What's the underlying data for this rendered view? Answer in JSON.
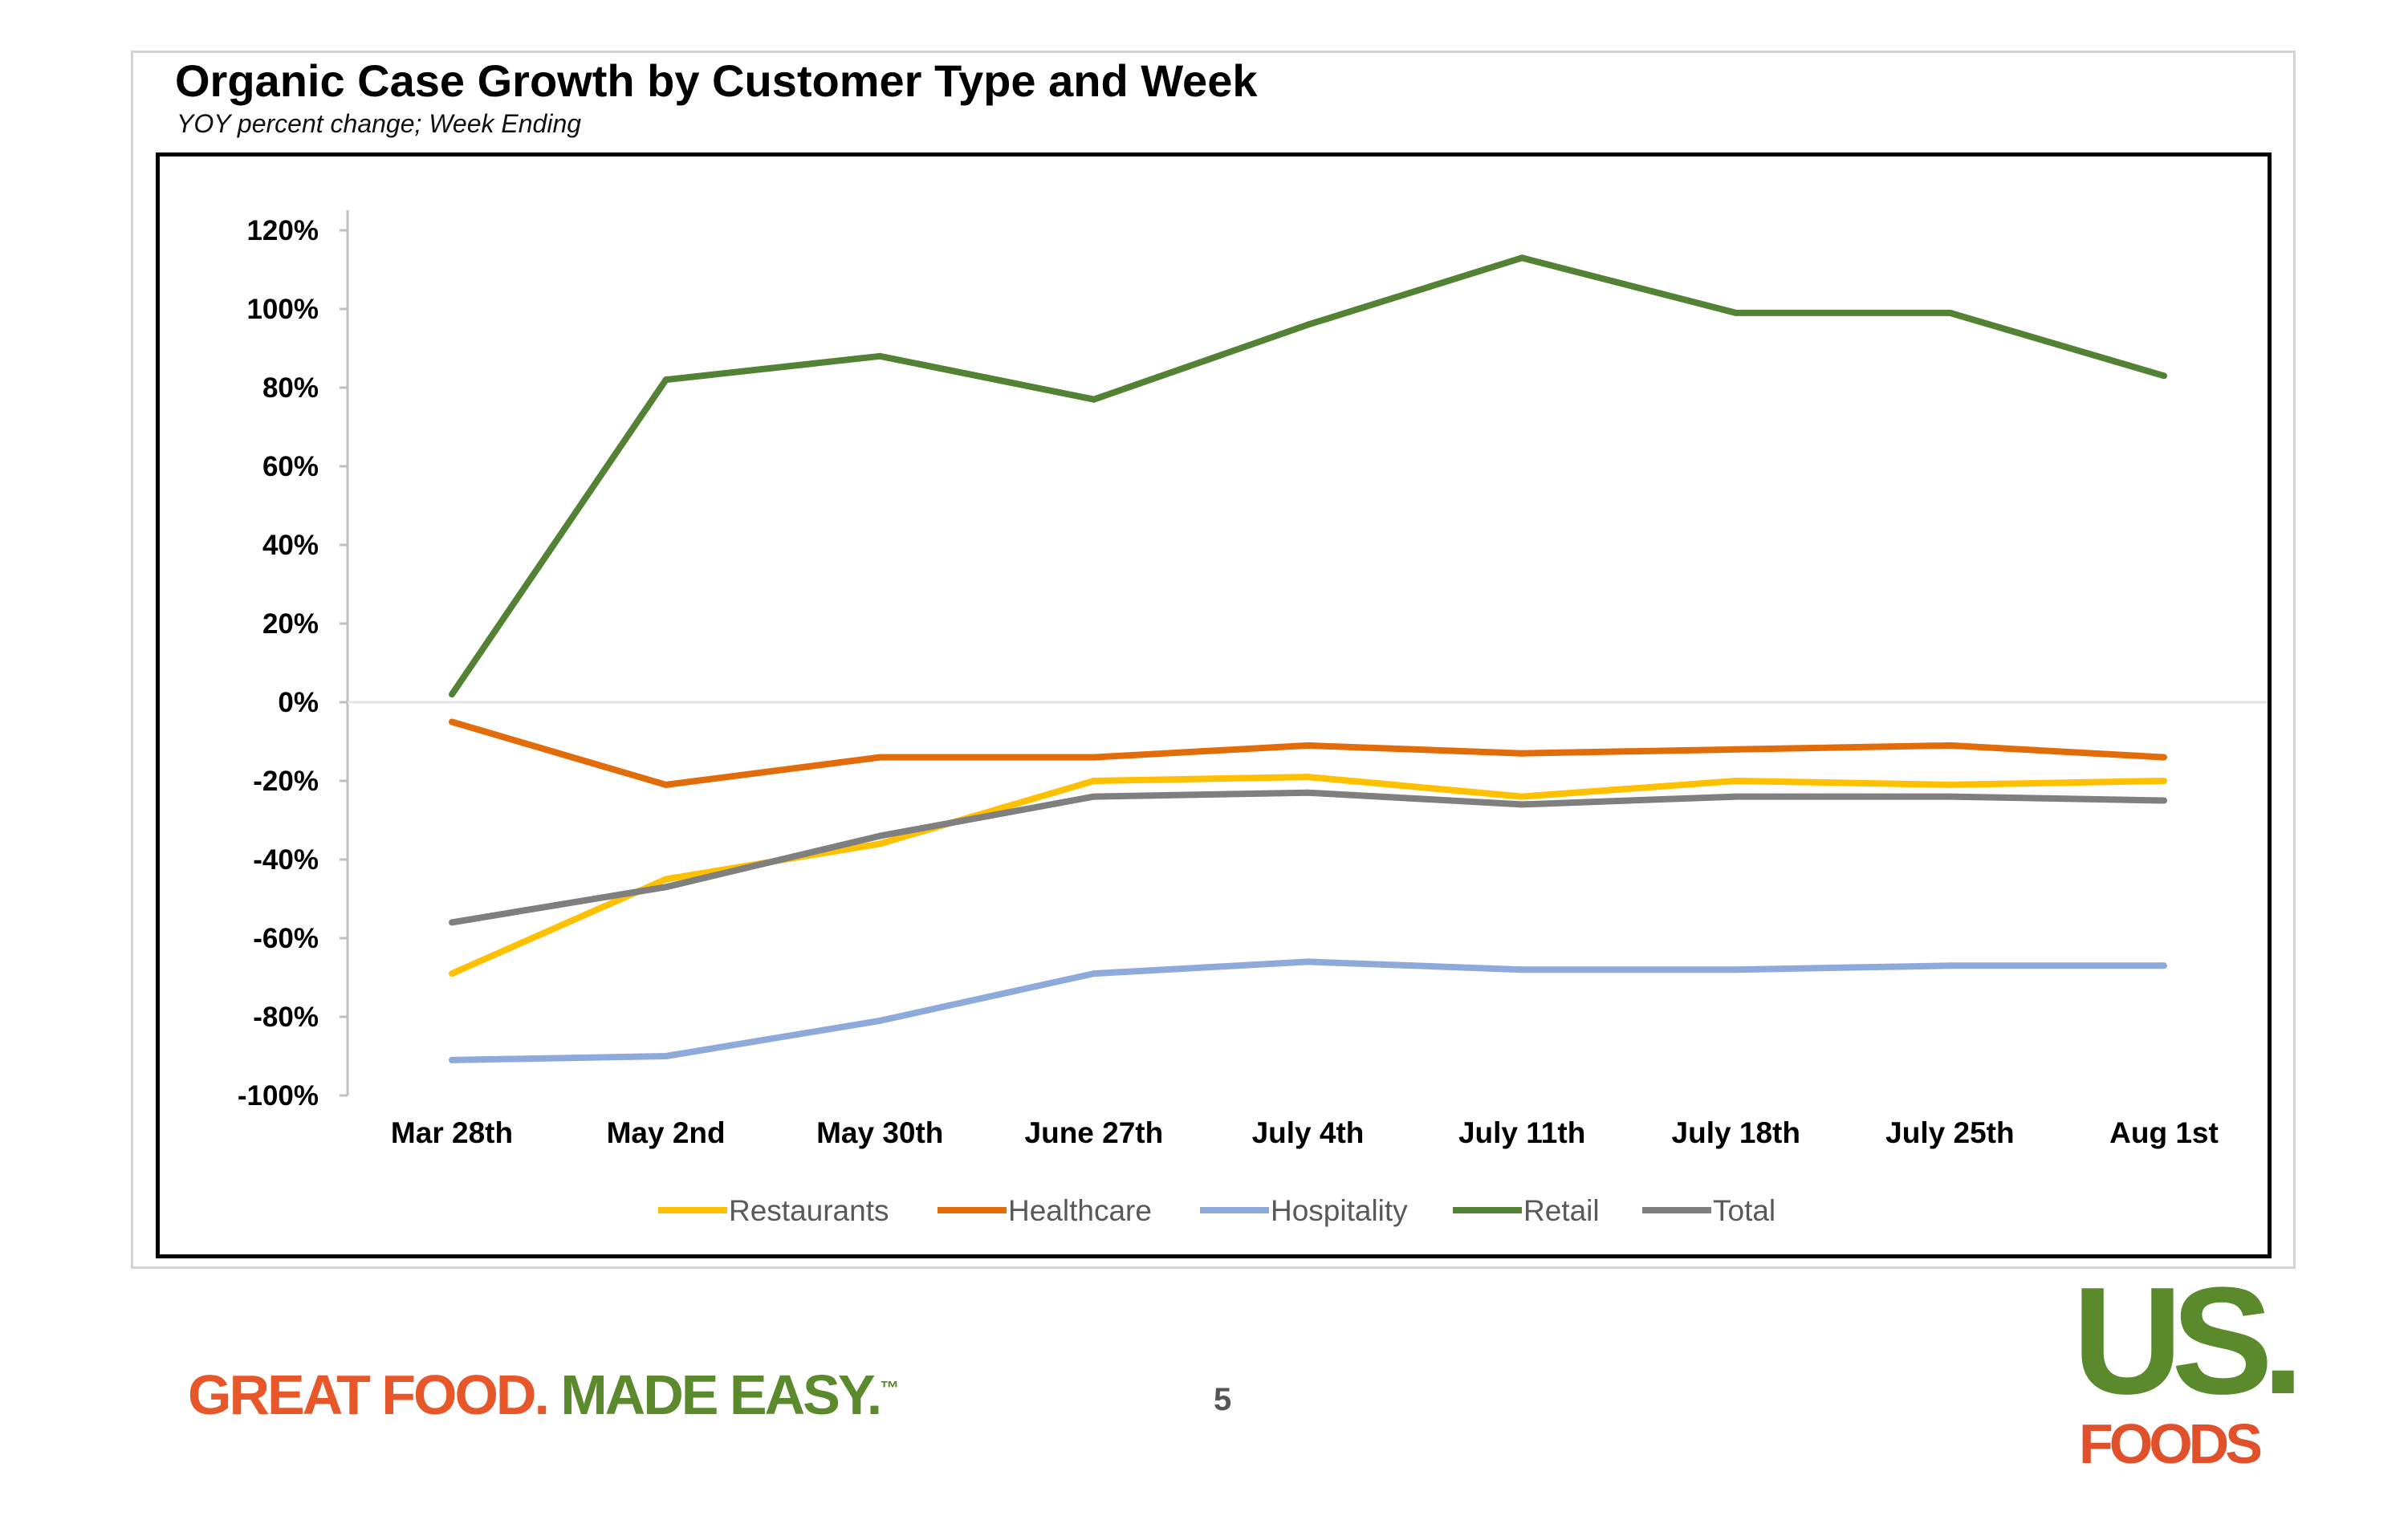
{
  "chart_data": {
    "type": "line",
    "title": "Organic Case Growth by Customer Type and Week",
    "subtitle": "YOY percent change; Week Ending",
    "xlabel": "",
    "ylabel": "",
    "categories": [
      "Mar 28th",
      "May 2nd",
      "May 30th",
      "June 27th",
      "July 4th",
      "July 11th",
      "July 18th",
      "July 25th",
      "Aug 1st"
    ],
    "ylim": [
      -100,
      120
    ],
    "yticks": [
      "120%",
      "100%",
      "80%",
      "60%",
      "40%",
      "20%",
      "0%",
      "-20%",
      "-40%",
      "-60%",
      "-80%",
      "-100%"
    ],
    "ytick_values": [
      120,
      100,
      80,
      60,
      40,
      20,
      0,
      -20,
      -40,
      -60,
      -80,
      -100
    ],
    "grid": false,
    "legend": "bottom",
    "series": [
      {
        "name": "Restaurants",
        "color": "#ffc000",
        "values": [
          -69,
          -45,
          -36,
          -20,
          -19,
          -24,
          -20,
          -21,
          -20
        ]
      },
      {
        "name": "Healthcare",
        "color": "#e36c0a",
        "values": [
          -5,
          -21,
          -14,
          -14,
          -11,
          -13,
          -12,
          -11,
          -14
        ]
      },
      {
        "name": "Hospitality",
        "color": "#8eaadb",
        "values": [
          -91,
          -90,
          -81,
          -69,
          -66,
          -68,
          -68,
          -67,
          -67
        ]
      },
      {
        "name": "Retail",
        "color": "#548235",
        "values": [
          2,
          82,
          88,
          77,
          96,
          113,
          99,
          99,
          83
        ]
      },
      {
        "name": "Total",
        "color": "#7f7f7f",
        "values": [
          -56,
          -47,
          -34,
          -24,
          -23,
          -26,
          -24,
          -24,
          -25
        ]
      }
    ]
  },
  "footer": {
    "tagline_part1": "GREAT FOOD.",
    "tagline_part2": "MADE EASY.",
    "trademark": "™",
    "page_number": "5",
    "logo_top": "US.",
    "logo_bottom": "FOODS"
  }
}
